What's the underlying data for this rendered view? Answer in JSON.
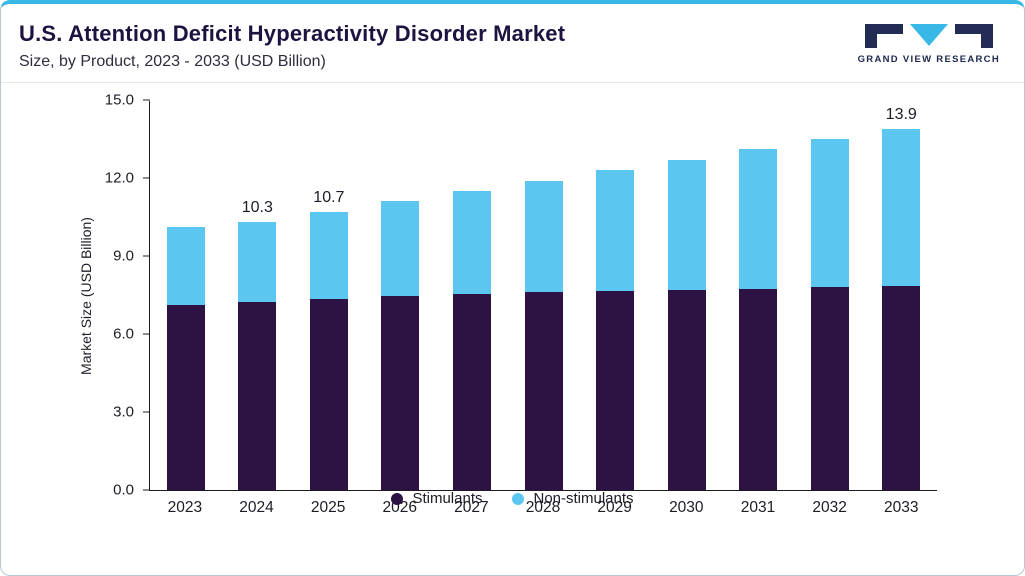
{
  "header": {
    "title": "U.S. Attention Deficit Hyperactivity Disorder Market",
    "subtitle": "Size, by Product, 2023 - 2033 (USD Billion)",
    "logo_text": "GRAND VIEW RESEARCH"
  },
  "colors": {
    "stimulants": "#2D1343",
    "non_stimulants": "#5BC6F0",
    "accent_top_border": "#38B8E6",
    "title_text": "#1D1240"
  },
  "chart_data": {
    "type": "bar",
    "stacked": true,
    "title": "U.S. Attention Deficit Hyperactivity Disorder Market Size, by Product, 2023 - 2033 (USD Billion)",
    "categories": [
      "2023",
      "2024",
      "2025",
      "2026",
      "2027",
      "2028",
      "2029",
      "2030",
      "2031",
      "2032",
      "2033"
    ],
    "series": [
      {
        "name": "Stimulants",
        "color": "#2D1343",
        "values": [
          7.1,
          7.25,
          7.35,
          7.45,
          7.55,
          7.6,
          7.65,
          7.7,
          7.75,
          7.8,
          7.85
        ]
      },
      {
        "name": "Non-stimulants",
        "color": "#5BC6F0",
        "values": [
          3.0,
          3.05,
          3.35,
          3.65,
          3.95,
          4.3,
          4.65,
          5.0,
          5.35,
          5.7,
          6.05
        ]
      }
    ],
    "totals": [
      10.1,
      10.3,
      10.7,
      11.1,
      11.5,
      11.9,
      12.3,
      12.7,
      13.1,
      13.5,
      13.9
    ],
    "bar_labels": [
      "",
      "10.3",
      "10.7",
      "",
      "",
      "",
      "",
      "",
      "",
      "",
      "13.9"
    ],
    "xlabel": "",
    "ylabel": "Market Size (USD Billion)",
    "yticks": [
      "0.0",
      "3.0",
      "6.0",
      "9.0",
      "12.0",
      "15.0"
    ],
    "ylim": [
      0,
      15
    ],
    "grid": false,
    "legend_position": "bottom"
  },
  "legend": {
    "items": [
      {
        "label": "Stimulants",
        "color": "#2D1343"
      },
      {
        "label": "Non-stimulants",
        "color": "#5BC6F0"
      }
    ]
  }
}
